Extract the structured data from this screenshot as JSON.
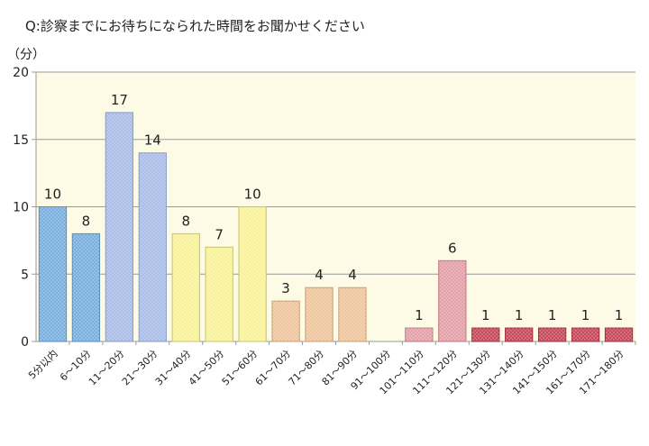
{
  "title": "Q:診察までにお待ちになられた時間をお聞かせください",
  "unit_label": "（分）",
  "chart_data": {
    "type": "bar",
    "title": "Q:診察までにお待ちになられた時間をお聞かせください",
    "ylabel": "（分）",
    "xlabel": "",
    "ylim": [
      0,
      20
    ],
    "yticks": [
      0,
      5,
      10,
      15,
      20
    ],
    "grid": true,
    "categories": [
      "5分以内",
      "6～10分",
      "11～20分",
      "21～30分",
      "31～40分",
      "41～50分",
      "51～60分",
      "61～70分",
      "71～80分",
      "81～90分",
      "91～100分",
      "101～110分",
      "111～120分",
      "121～130分",
      "131～140分",
      "141～150分",
      "161～170分",
      "171～180分"
    ],
    "values": [
      10,
      8,
      17,
      14,
      8,
      7,
      10,
      3,
      4,
      4,
      0,
      1,
      6,
      1,
      1,
      1,
      1,
      1
    ],
    "data_labels": [
      "10",
      "8",
      "17",
      "14",
      "8",
      "7",
      "10",
      "3",
      "4",
      "4",
      "",
      "1",
      "6",
      "1",
      "1",
      "1",
      "1",
      "1"
    ],
    "bar_colors": [
      "#7aafe0",
      "#7aafe0",
      "#a9bde6",
      "#a9bde6",
      "#f8f39a",
      "#f8f39a",
      "#f8f39a",
      "#efc59c",
      "#efc59c",
      "#efc59c",
      "#efc59c",
      "#e3a0a8",
      "#e3a0a8",
      "#c84a5a",
      "#c84a5a",
      "#c84a5a",
      "#c84a5a",
      "#c84a5a"
    ],
    "bar_edge_colors": [
      "#5a8fc0",
      "#5a8fc0",
      "#8a9dc6",
      "#8a9dc6",
      "#c8c36a",
      "#c8c36a",
      "#c8c36a",
      "#c99f78",
      "#c99f78",
      "#c99f78",
      "#c99f78",
      "#c07a82",
      "#c07a82",
      "#a03040",
      "#a03040",
      "#a03040",
      "#a03040",
      "#a03040"
    ],
    "plot_background": "#fdfbe6"
  }
}
